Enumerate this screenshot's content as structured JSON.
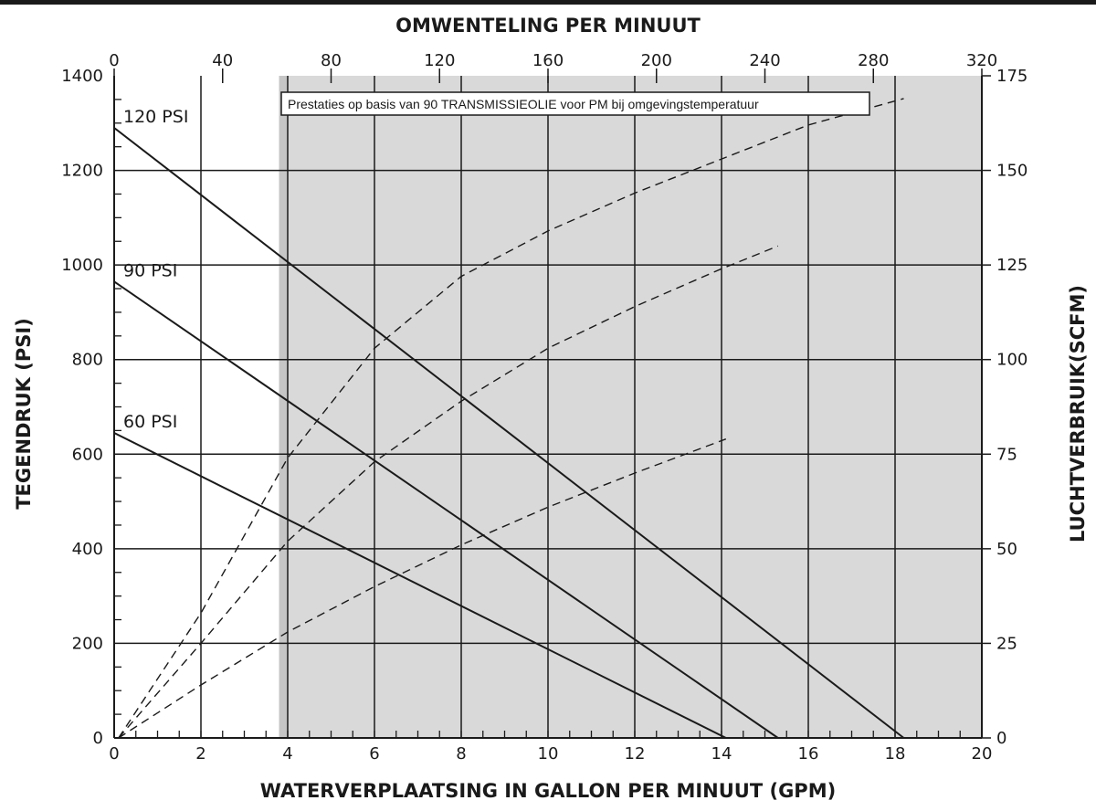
{
  "chart_data": {
    "type": "line",
    "title": "",
    "xlabel": "WATERVERPLAATSING IN GALLON PER MINUUT (GPM)",
    "ylabel": "TEGENDRUK (PSI)",
    "x2label": "OMWENTELING PER MINUUT",
    "y2label": "LUCHTVERBRUIK(SCFM)",
    "note": "Prestaties op basis van 90 TRANSMISSIEOLIE voor PM bij omgevingstemperatuur",
    "xlim": [
      0,
      20
    ],
    "ylim": [
      0,
      1400
    ],
    "x2lim": [
      0,
      320
    ],
    "y2lim": [
      0,
      175
    ],
    "x_ticks": [
      0,
      2,
      4,
      6,
      8,
      10,
      12,
      14,
      16,
      18,
      20
    ],
    "y_ticks": [
      0,
      200,
      400,
      600,
      800,
      1000,
      1200,
      1400
    ],
    "x2_ticks": [
      0,
      40,
      80,
      120,
      160,
      200,
      240,
      280,
      320
    ],
    "y2_ticks": [
      0,
      25,
      50,
      75,
      100,
      125,
      150,
      175
    ],
    "grid": true,
    "shaded_region_x": [
      3.8,
      20
    ],
    "colors": {
      "line": "#1a1a1a",
      "shade": "#d9d9d9",
      "shade_edge": "#c6c6c6"
    },
    "series": [
      {
        "name": "120 PSI",
        "kind": "tegendruk",
        "x": [
          0,
          18.2
        ],
        "y": [
          1290,
          0
        ]
      },
      {
        "name": "90 PSI",
        "kind": "tegendruk",
        "x": [
          0,
          15.3
        ],
        "y": [
          965,
          0
        ]
      },
      {
        "name": "60 PSI",
        "kind": "tegendruk",
        "x": [
          0,
          14.1
        ],
        "y": [
          645,
          0
        ]
      },
      {
        "name": "120 PSI",
        "kind": "luchtverbruik",
        "dashed": true,
        "x": [
          0.1,
          2,
          4,
          6,
          8,
          10,
          12,
          14,
          16,
          18.2
        ],
        "y": [
          0,
          33,
          74,
          103,
          122,
          134,
          144,
          153,
          162,
          169
        ]
      },
      {
        "name": "90 PSI",
        "kind": "luchtverbruik",
        "dashed": true,
        "x": [
          0.1,
          2,
          4,
          6,
          8,
          10,
          12,
          14,
          15.3
        ],
        "y": [
          0,
          25,
          52,
          73,
          89,
          103,
          114,
          124,
          130
        ]
      },
      {
        "name": "60 PSI",
        "kind": "luchtverbruik",
        "dashed": true,
        "x": [
          0.1,
          2,
          4,
          6,
          8,
          10,
          12,
          14.1
        ],
        "y": [
          0,
          14,
          28,
          40,
          51,
          61,
          70,
          79
        ]
      }
    ]
  }
}
